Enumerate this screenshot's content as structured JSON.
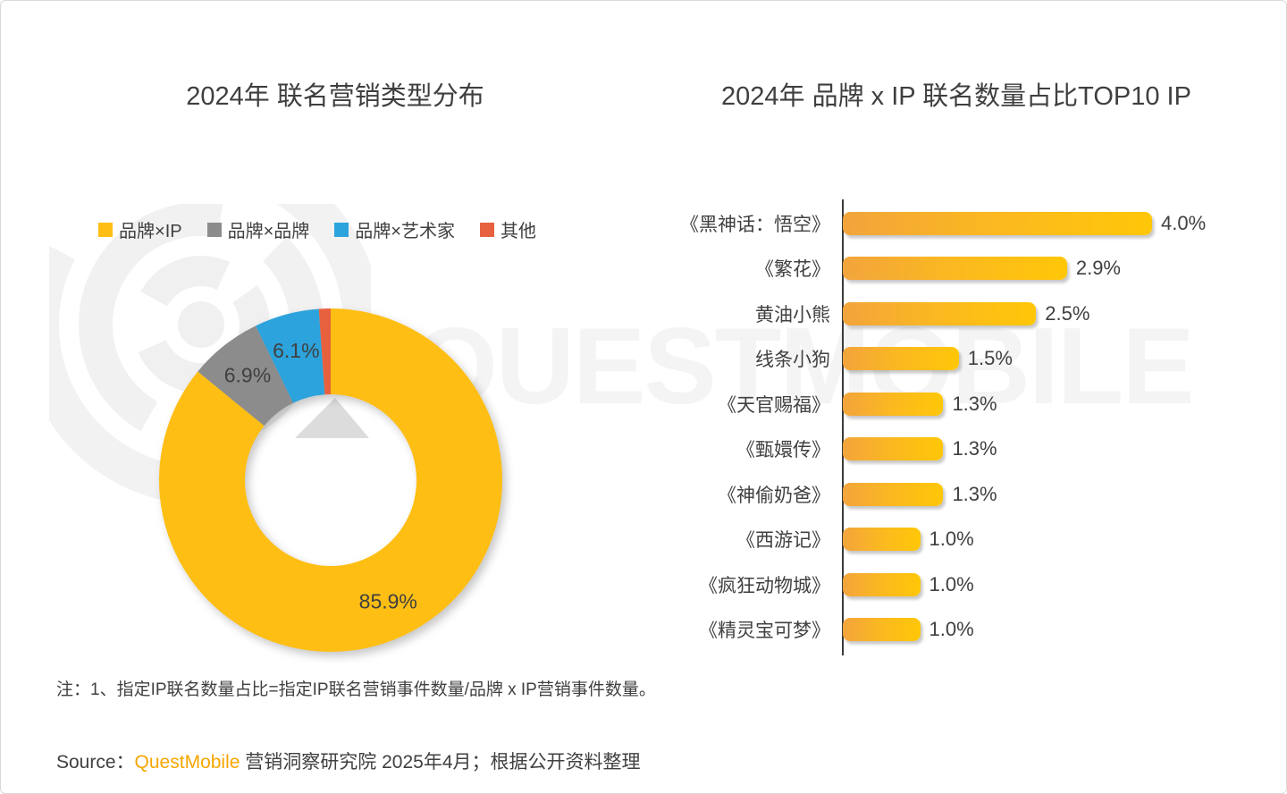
{
  "page": {
    "watermark_text": "QUESTMOBILE",
    "note": "注：1、指定IP联名数量占比=指定IP联名营销事件数量/品牌 x IP营销事件数量。",
    "source": {
      "prefix": "Source：",
      "brand": "QuestMobile",
      "suffix": " 营销洞察研究院 2025年4月；根据公开资料整理"
    }
  },
  "colors": {
    "yellow": "#FFBE14",
    "gray": "#8C8C8C",
    "blue": "#2CA3DC",
    "red": "#E8613F",
    "bar_gradient_start": "#F2A43C",
    "bar_gradient_end": "#FFC708",
    "brand_orange": "#F7A600",
    "text": "#404040",
    "watermark": "#f4f4f4"
  },
  "chart_data": [
    {
      "type": "pie",
      "donut": true,
      "title": "2024年 联名营销类型分布",
      "legend_position": "top",
      "slices": [
        {
          "label": "品牌×IP",
          "value": 85.9,
          "display": "85.9%",
          "color": "#FFBE14",
          "label_shown": true
        },
        {
          "label": "品牌×品牌",
          "value": 6.9,
          "display": "6.9%",
          "color": "#8C8C8C",
          "label_shown": true
        },
        {
          "label": "品牌×艺术家",
          "value": 6.1,
          "display": "6.1%",
          "color": "#2CA3DC",
          "label_shown": true
        },
        {
          "label": "其他",
          "value": 1.1,
          "display": "",
          "color": "#E8613F",
          "label_shown": false
        }
      ]
    },
    {
      "type": "bar",
      "orientation": "horizontal",
      "title": "2024年 品牌 x IP 联名数量占比TOP10 IP",
      "categories": [
        "《黑神话：悟空》",
        "《繁花》",
        "黄油小熊",
        "线条小狗",
        "《天官赐福》",
        "《甄嬛传》",
        "《神偷奶爸》",
        "《西游记》",
        "《疯狂动物城》",
        "《精灵宝可梦》"
      ],
      "values": [
        4.0,
        2.9,
        2.5,
        1.5,
        1.3,
        1.3,
        1.3,
        1.0,
        1.0,
        1.0
      ],
      "value_labels": [
        "4.0%",
        "2.9%",
        "2.5%",
        "1.5%",
        "1.3%",
        "1.3%",
        "1.3%",
        "1.0%",
        "1.0%",
        "1.0%"
      ],
      "xlim": [
        0,
        4.4
      ],
      "grid": false,
      "legend_position": "none"
    }
  ]
}
